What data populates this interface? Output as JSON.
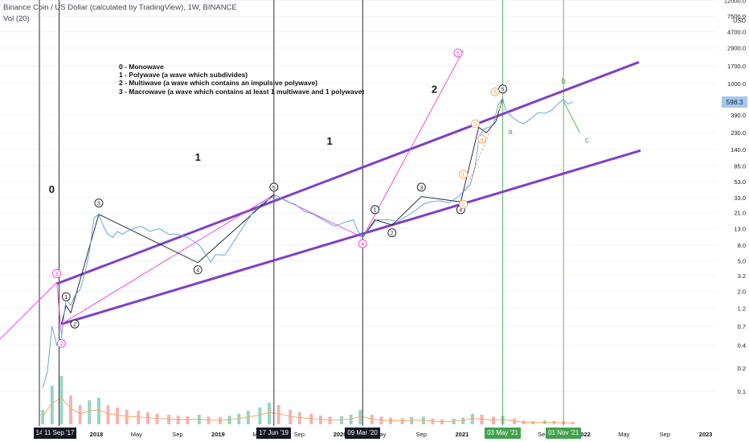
{
  "header": {
    "title": "Binance Coin / US Dollar (calculated by TradingView), 1W, BINANCE",
    "indicator": "Vol (20)"
  },
  "legend": [
    "0 - Monowave",
    "1 - Polywave (a wave which subdivides)",
    "2 - Multiwave (a wave which contains an impulsive polywave)",
    "3 - Macrowave (a wave which contains at least 1 multiwave and 1 polywave)"
  ],
  "colors": {
    "price": "#5b9bd5",
    "channel": "#7e3fc8",
    "projection": "#f03cd3",
    "wave": "#131722",
    "abc": "#4caf50",
    "sub": "#f3a35b",
    "vol_up": "#86ccb7",
    "vol_down": "#f2a6a6",
    "vol_ma": "#f7a76a"
  },
  "current_price": "598.3",
  "chart_data": {
    "type": "line",
    "title": "Binance Coin / US Dollar (calculated by TradingView), 1W, BINANCE",
    "y_scale": "log",
    "y_unit": "USD",
    "ylim": [
      0.05,
      12000
    ],
    "y_ticks": [
      "12000.0",
      "7500.0",
      "4700.0",
      "2900.0",
      "1700.0",
      "1000.0",
      "390.0",
      "230.0",
      "140.0",
      "85.0",
      "53.0",
      "33.0",
      "21.0",
      "13.0",
      "8.0",
      "5.0",
      "3.2",
      "2.0",
      "1.2",
      "0.7",
      "0.4",
      "0.2",
      "0.1"
    ],
    "x_ticks": [
      "2018",
      "May",
      "Sep",
      "2019",
      "May",
      "Sep",
      "2020",
      "May",
      "Sep",
      "2021",
      "May",
      "Sep",
      "2022",
      "May",
      "Sep",
      "2023"
    ],
    "x_range": [
      "2017-07-01",
      "2023-06-01"
    ],
    "date_markers": [
      {
        "label": "14",
        "date": "2017-07-14",
        "style": "black"
      },
      {
        "label": "11 Sep '17",
        "date": "2017-09-11",
        "style": "black"
      },
      {
        "label": "17 Jun '19",
        "date": "2019-06-17",
        "style": "black"
      },
      {
        "label": "09 Mar '20",
        "date": "2020-03-09",
        "style": "black"
      },
      {
        "label": "03 May '21",
        "date": "2021-05-03",
        "style": "green"
      },
      {
        "label": "01 Nov '21",
        "date": "2021-11-01",
        "style": "green"
      }
    ],
    "series": [
      {
        "name": "BNBUSD",
        "x": [
          "2017-07-24",
          "2017-08-07",
          "2017-08-21",
          "2017-09-04",
          "2017-09-18",
          "2017-10-02",
          "2017-10-16",
          "2017-10-30",
          "2017-11-13",
          "2017-11-27",
          "2017-12-11",
          "2017-12-25",
          "2018-01-08",
          "2018-01-22",
          "2018-02-05",
          "2018-02-19",
          "2018-03-05",
          "2018-03-19",
          "2018-04-02",
          "2018-04-23",
          "2018-05-14",
          "2018-06-11",
          "2018-07-09",
          "2018-08-06",
          "2018-09-03",
          "2018-10-01",
          "2018-11-05",
          "2018-12-10",
          "2018-12-24",
          "2019-01-21",
          "2019-02-18",
          "2019-03-18",
          "2019-04-15",
          "2019-05-13",
          "2019-06-10",
          "2019-06-24",
          "2019-07-22",
          "2019-08-19",
          "2019-09-16",
          "2019-10-14",
          "2019-11-11",
          "2019-12-16",
          "2020-01-20",
          "2020-02-10",
          "2020-02-24",
          "2020-03-09",
          "2020-03-23",
          "2020-04-20",
          "2020-05-25",
          "2020-06-22",
          "2020-07-20",
          "2020-08-17",
          "2020-09-07",
          "2020-09-28",
          "2020-10-26",
          "2020-11-23",
          "2020-12-21",
          "2021-01-11",
          "2021-01-25",
          "2021-02-08",
          "2021-02-22",
          "2021-03-08",
          "2021-03-22",
          "2021-04-05",
          "2021-04-19",
          "2021-05-03",
          "2021-05-10",
          "2021-05-24",
          "2021-06-14",
          "2021-07-05",
          "2021-07-26",
          "2021-08-16",
          "2021-09-06",
          "2021-09-27",
          "2021-10-18",
          "2021-11-01",
          "2021-11-15",
          "2021-11-29"
        ],
        "values": [
          0.11,
          0.18,
          0.7,
          0.4,
          0.5,
          1.6,
          1.3,
          1.8,
          2.1,
          3.4,
          6.5,
          18,
          20,
          14,
          11,
          10,
          12,
          11,
          12,
          13,
          14,
          12,
          13,
          11,
          11,
          10,
          8,
          4.8,
          6,
          5.9,
          9,
          14,
          21,
          28,
          33,
          35,
          30,
          27,
          22,
          20,
          17,
          14,
          16,
          17,
          12,
          10,
          12,
          17,
          17,
          16,
          19,
          23,
          27,
          29,
          30,
          28,
          34,
          42,
          48,
          78,
          210,
          260,
          270,
          300,
          530,
          640,
          470,
          390,
          330,
          300,
          350,
          420,
          410,
          450,
          560,
          620,
          540,
          580
        ]
      },
      {
        "name": "Volume",
        "x": [
          "2017-07-24",
          "2017-08-21",
          "2017-09-18",
          "2017-10-16",
          "2017-11-13",
          "2017-12-11",
          "2018-01-08",
          "2018-02-05",
          "2018-03-05",
          "2018-04-02",
          "2018-05-07",
          "2018-06-04",
          "2018-07-02",
          "2018-08-06",
          "2018-09-03",
          "2018-10-01",
          "2018-11-05",
          "2018-12-03",
          "2019-01-07",
          "2019-02-04",
          "2019-03-04",
          "2019-04-01",
          "2019-05-06",
          "2019-06-03",
          "2019-07-01",
          "2019-08-05",
          "2019-09-02",
          "2019-10-07",
          "2019-11-04",
          "2019-12-02",
          "2020-01-06",
          "2020-02-03",
          "2020-03-02",
          "2020-04-06",
          "2020-05-04",
          "2020-06-01",
          "2020-07-06",
          "2020-08-03",
          "2020-09-07",
          "2020-10-05",
          "2020-11-02",
          "2020-12-07",
          "2021-01-04",
          "2021-02-01",
          "2021-03-01",
          "2021-04-05",
          "2021-05-03",
          "2021-06-07",
          "2021-07-05",
          "2021-08-02",
          "2021-09-06",
          "2021-10-04",
          "2021-11-01",
          "2021-11-29"
        ],
        "values": [
          0.3,
          0.8,
          1.0,
          0.6,
          0.4,
          0.5,
          0.55,
          0.4,
          0.35,
          0.3,
          0.28,
          0.25,
          0.22,
          0.2,
          0.18,
          0.17,
          0.2,
          0.16,
          0.15,
          0.18,
          0.22,
          0.28,
          0.35,
          0.45,
          0.4,
          0.3,
          0.25,
          0.22,
          0.18,
          0.16,
          0.17,
          0.2,
          0.3,
          0.2,
          0.16,
          0.14,
          0.13,
          0.15,
          0.16,
          0.12,
          0.1,
          0.12,
          0.14,
          0.22,
          0.2,
          0.16,
          0.18,
          0.12,
          0.08,
          0.07,
          0.08,
          0.07,
          0.06,
          0.05
        ]
      }
    ],
    "annotations": [
      {
        "text": "0",
        "date": "2017-01-20",
        "price": 45
      },
      {
        "text": "0",
        "date": "2017-08-20",
        "price": 38
      },
      {
        "text": "1",
        "date": "2018-11-01",
        "price": 100
      },
      {
        "text": "1",
        "date": "2019-12-01",
        "price": 160
      },
      {
        "text": "2",
        "date": "2020-10-10",
        "price": 760
      },
      {
        "text": "a",
        "date": "2021-05-25",
        "price": 220
      },
      {
        "text": "b",
        "date": "2021-11-01",
        "price": 1000
      },
      {
        "text": "c",
        "date": "2022-01-10",
        "price": 170
      }
    ]
  }
}
